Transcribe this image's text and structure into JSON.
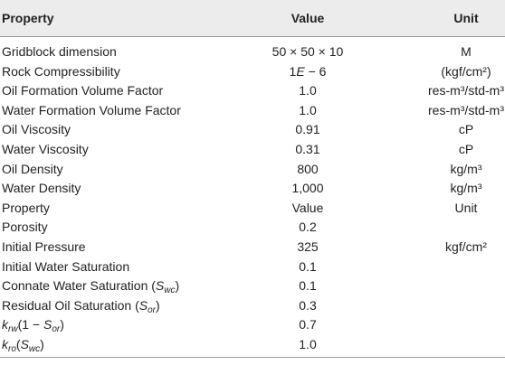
{
  "table": {
    "header": [
      "Property",
      "Value",
      "Unit"
    ],
    "rows": [
      [
        "Gridblock dimension",
        "50 × 50 × 10",
        "M"
      ],
      [
        "Rock Compressibility",
        [
          {
            "t": "1"
          },
          {
            "t": "E",
            "f": "i"
          },
          {
            "t": " − 6"
          }
        ],
        "(kgf/cm²)"
      ],
      [
        "Oil Formation Volume Factor",
        "1.0",
        "res-m³/std-m³"
      ],
      [
        "Water Formation Volume Factor",
        "1.0",
        "res-m³/std-m³"
      ],
      [
        "Oil Viscosity",
        "0.91",
        "cP"
      ],
      [
        "Water Viscosity",
        "0.31",
        "cP"
      ],
      [
        "Oil Density",
        "800",
        "kg/m³"
      ],
      [
        "Water Density",
        "1,000",
        "kg/m³"
      ],
      [
        "Property",
        "Value",
        "Unit"
      ],
      [
        "Porosity",
        "0.2",
        ""
      ],
      [
        "Initial Pressure",
        "325",
        "kgf/cm²"
      ],
      [
        "Initial Water Saturation",
        "0.1",
        ""
      ],
      [
        [
          {
            "t": "Connate Water Saturation ("
          },
          {
            "t": "S",
            "f": "i"
          },
          {
            "t": "wc",
            "f": "sub"
          },
          {
            "t": ")"
          }
        ],
        "0.1",
        ""
      ],
      [
        [
          {
            "t": "Residual Oil Saturation ("
          },
          {
            "t": "S",
            "f": "i"
          },
          {
            "t": "or",
            "f": "sub"
          },
          {
            "t": ")"
          }
        ],
        "0.3",
        ""
      ],
      [
        [
          {
            "t": "k",
            "f": "i"
          },
          {
            "t": "rw",
            "f": "sub"
          },
          {
            "t": "(1 − "
          },
          {
            "t": "S",
            "f": "i"
          },
          {
            "t": "or",
            "f": "sub"
          },
          {
            "t": ")"
          }
        ],
        "0.7",
        ""
      ],
      [
        [
          {
            "t": "k",
            "f": "i"
          },
          {
            "t": "ro",
            "f": "sub"
          },
          {
            "t": "("
          },
          {
            "t": "S",
            "f": "i"
          },
          {
            "t": "wc",
            "f": "sub"
          },
          {
            "t": ")"
          }
        ],
        "1.0",
        ""
      ]
    ]
  }
}
